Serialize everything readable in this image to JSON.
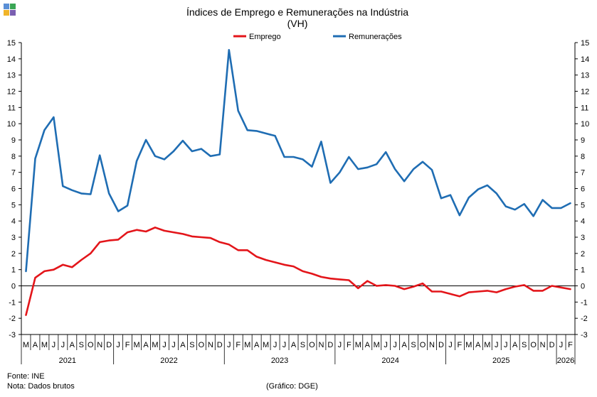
{
  "title": "Índices de Emprego e Remunerações na Indústria",
  "subtitle": "(VH)",
  "footer": {
    "source": "Fonte: INE",
    "note": "Nota: Dados brutos",
    "credit": "(Gráfico: DGE)"
  },
  "colors": {
    "logo": [
      "#5a8fd6",
      "#3aa655",
      "#f0b429",
      "#7a5fb0"
    ]
  },
  "chart_data": {
    "type": "line",
    "title": "Índices de Emprego e Remunerações na Indústria",
    "subtitle": "(VH)",
    "ylim": [
      -3,
      15
    ],
    "yticks": [
      -3,
      -2,
      -1,
      0,
      1,
      2,
      3,
      4,
      5,
      6,
      7,
      8,
      9,
      10,
      11,
      12,
      13,
      14,
      15
    ],
    "legend_position": "top",
    "grid": false,
    "x_month_labels": [
      "M",
      "A",
      "M",
      "J",
      "J",
      "A",
      "S",
      "O",
      "N",
      "D",
      "J",
      "F",
      "M",
      "A",
      "M",
      "J",
      "J",
      "A",
      "S",
      "O",
      "N",
      "D",
      "J",
      "F",
      "M",
      "A",
      "M",
      "J",
      "J",
      "A",
      "S",
      "O",
      "N",
      "D",
      "J",
      "F",
      "M",
      "A",
      "M",
      "J",
      "J",
      "A",
      "S",
      "O",
      "N",
      "D",
      "J",
      "F",
      "M",
      "A",
      "M",
      "J",
      "J",
      "A",
      "S",
      "O",
      "N",
      "D",
      "J",
      "F"
    ],
    "years": [
      {
        "label": "2021",
        "start": 0,
        "end": 9
      },
      {
        "label": "2022",
        "start": 10,
        "end": 21
      },
      {
        "label": "2023",
        "start": 22,
        "end": 33
      },
      {
        "label": "2024",
        "start": 34,
        "end": 45
      },
      {
        "label": "2025",
        "start": 46,
        "end": 57
      },
      {
        "label": "2026",
        "start": 58,
        "end": 59
      }
    ],
    "series": [
      {
        "name": "Emprego",
        "color": "#e3151a",
        "values": [
          -1.8,
          0.5,
          0.9,
          1.0,
          1.3,
          1.15,
          1.6,
          2.0,
          2.7,
          2.8,
          2.85,
          3.3,
          3.45,
          3.35,
          3.6,
          3.4,
          3.3,
          3.2,
          3.05,
          3.0,
          2.95,
          2.7,
          2.55,
          2.2,
          2.2,
          1.8,
          1.6,
          1.45,
          1.3,
          1.2,
          0.9,
          0.75,
          0.55,
          0.45,
          0.4,
          0.35,
          -0.15,
          0.3,
          0.0,
          0.05,
          0.0,
          -0.2,
          -0.05,
          0.15,
          -0.35,
          -0.35,
          -0.5,
          -0.65,
          -0.4,
          -0.35,
          -0.3,
          -0.4,
          -0.2,
          -0.05,
          0.05,
          -0.3,
          -0.3,
          0.0,
          -0.1,
          -0.2
        ]
      },
      {
        "name": "Remunerações",
        "color": "#1f6db3",
        "values": [
          0.9,
          7.85,
          9.6,
          10.4,
          6.15,
          5.9,
          5.7,
          5.65,
          8.05,
          5.7,
          4.6,
          4.95,
          7.7,
          9.0,
          8.0,
          7.8,
          8.3,
          8.95,
          8.3,
          8.45,
          8.0,
          8.1,
          14.55,
          10.8,
          9.6,
          9.55,
          9.4,
          9.25,
          7.95,
          7.95,
          7.8,
          7.35,
          8.9,
          6.35,
          7.0,
          7.95,
          7.2,
          7.3,
          7.5,
          8.25,
          7.2,
          6.45,
          7.2,
          7.65,
          7.15,
          5.4,
          5.6,
          4.35,
          5.45,
          5.95,
          6.2,
          5.7,
          4.9,
          4.7,
          5.05,
          4.3,
          5.3,
          4.8,
          4.8,
          5.1
        ]
      }
    ]
  }
}
